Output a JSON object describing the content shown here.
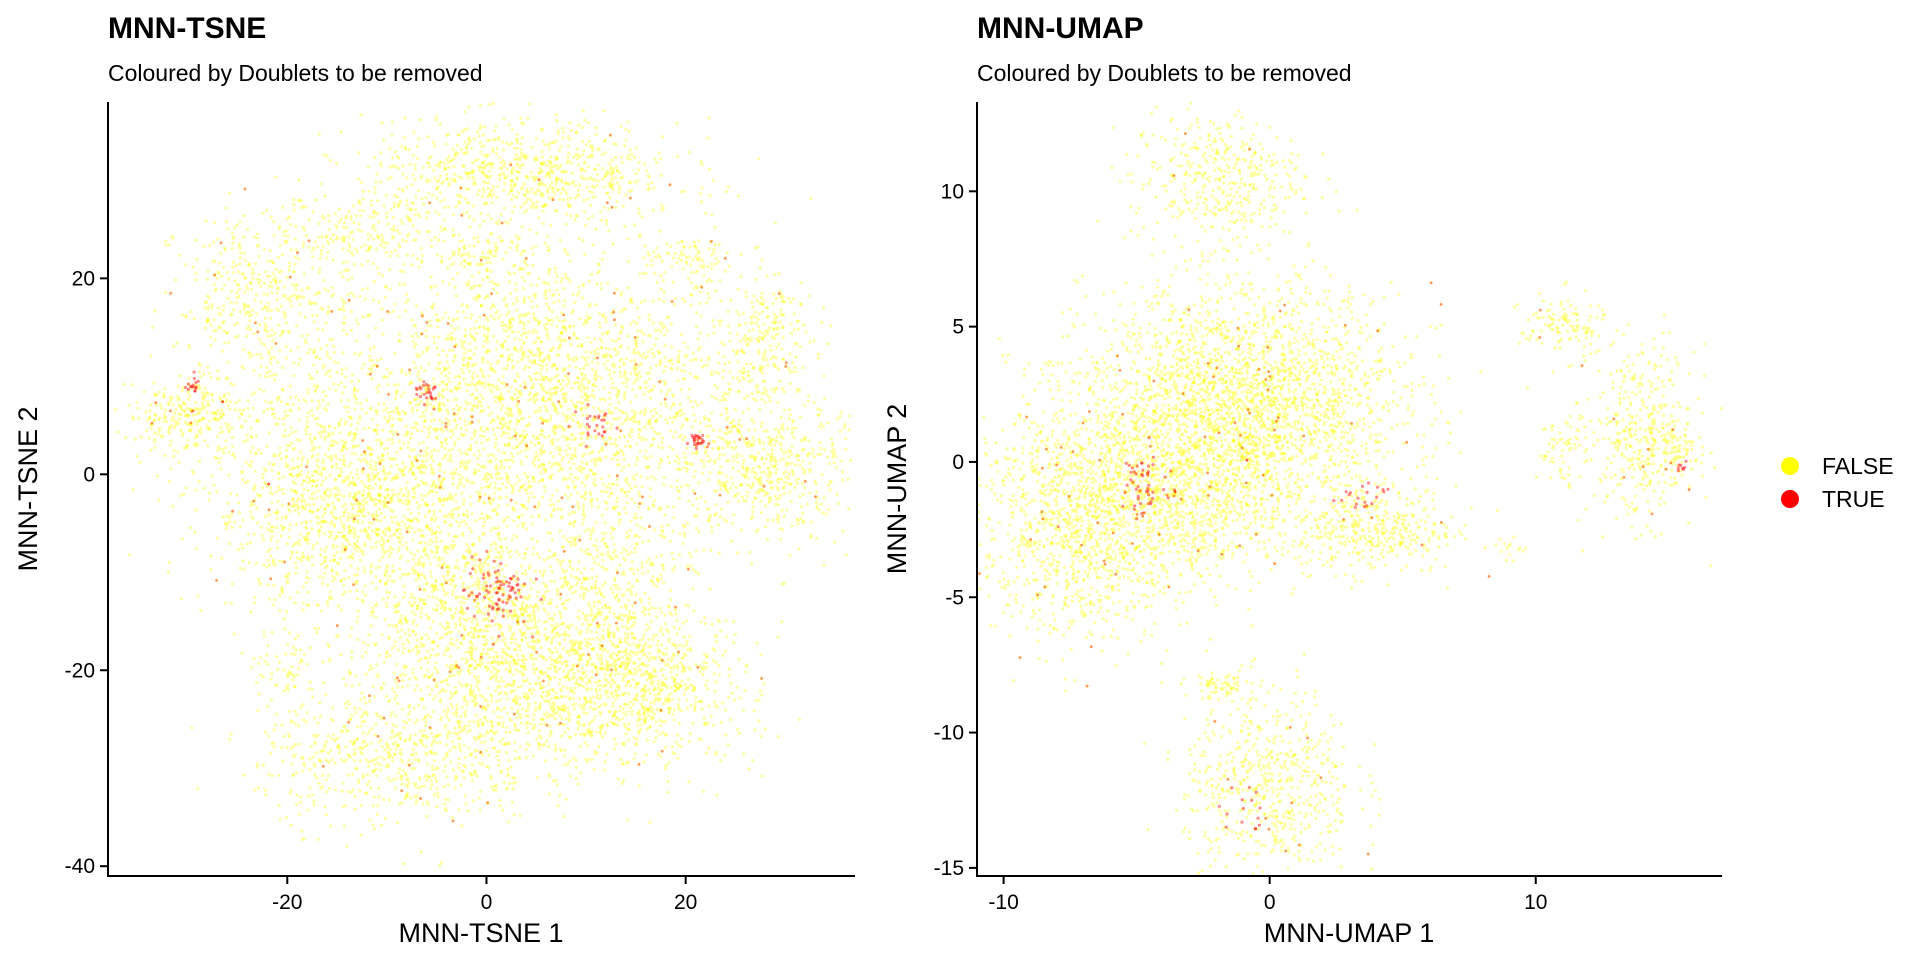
{
  "chart_data": [
    {
      "type": "scatter",
      "title": "MNN-TSNE",
      "subtitle": "Coloured by Doublets to be removed",
      "xlabel": "MNN-TSNE 1",
      "ylabel": "MNN-TSNE 2",
      "xlim": [
        -38,
        37
      ],
      "ylim": [
        -41,
        38
      ],
      "x_ticks": [
        -20,
        0,
        20
      ],
      "y_ticks": [
        -40,
        -20,
        0,
        20
      ],
      "grid": false,
      "clusters": [
        {
          "x": 5,
          "y": 8,
          "sx": 11,
          "sy": 7.5,
          "n": 2600
        },
        {
          "x": 3.5,
          "y": 30.5,
          "sx": 8,
          "sy": 2.8,
          "n": 800
        },
        {
          "x": -22,
          "y": 18,
          "sx": 4.5,
          "sy": 4.5,
          "n": 450
        },
        {
          "x": -30,
          "y": 6,
          "sx": 3,
          "sy": 2,
          "n": 260
        },
        {
          "x": -14,
          "y": -3,
          "sx": 7,
          "sy": 5.5,
          "n": 1300
        },
        {
          "x": 28,
          "y": 0.5,
          "sx": 4,
          "sy": 3.5,
          "n": 450
        },
        {
          "x": 28,
          "y": 14,
          "sx": 2.4,
          "sy": 3.3,
          "n": 200
        },
        {
          "x": 20,
          "y": 22,
          "sx": 2.2,
          "sy": 1,
          "n": 70
        },
        {
          "x": -12,
          "y": 25,
          "sx": 3.5,
          "sy": 2,
          "n": 150
        },
        {
          "x": 5,
          "y": -20,
          "sx": 8,
          "sy": 5,
          "n": 1300
        },
        {
          "x": -9,
          "y": -29,
          "sx": 7,
          "sy": 3.5,
          "n": 600
        },
        {
          "x": -2,
          "y": -12,
          "sx": 5,
          "sy": 6,
          "n": 700
        },
        {
          "x": 13,
          "y": -10,
          "sx": 4,
          "sy": 6,
          "n": 400
        },
        {
          "x": 16,
          "y": -22,
          "sx": 5.5,
          "sy": 4,
          "n": 500
        },
        {
          "x": -20,
          "y": -20,
          "sx": 1.5,
          "sy": 2,
          "n": 60
        },
        {
          "x": 0,
          "y": 22.5,
          "sx": 3,
          "sy": 1,
          "n": 80
        }
      ],
      "doublet_hotspots": [
        {
          "x": 1,
          "y": -12,
          "sx": 1.6,
          "sy": 1.8,
          "n": 80
        },
        {
          "x": 21,
          "y": 3.5,
          "sx": 0.4,
          "sy": 0.4,
          "n": 25
        },
        {
          "x": -6,
          "y": 8.5,
          "sx": 0.7,
          "sy": 0.6,
          "n": 25
        },
        {
          "x": 11,
          "y": 5,
          "sx": 1.2,
          "sy": 1,
          "n": 25
        },
        {
          "x": -29.5,
          "y": 9,
          "sx": 0.4,
          "sy": 0.4,
          "n": 15
        }
      ]
    },
    {
      "type": "scatter",
      "title": "MNN-UMAP",
      "subtitle": "Coloured by Doublets to be removed",
      "xlabel": "MNN-UMAP 1",
      "ylabel": "MNN-UMAP 2",
      "xlim": [
        -11,
        17
      ],
      "ylim": [
        -15.3,
        13.3
      ],
      "x_ticks": [
        -10,
        0,
        10
      ],
      "y_ticks": [
        -15,
        -10,
        -5,
        0,
        5,
        10
      ],
      "grid": false,
      "clusters": [
        {
          "x": -1,
          "y": 2,
          "sx": 3,
          "sy": 2.2,
          "n": 2600
        },
        {
          "x": -7,
          "y": -2,
          "sx": 2,
          "sy": 2.2,
          "n": 1300
        },
        {
          "x": -3,
          "y": -1.5,
          "sx": 1.8,
          "sy": 1.5,
          "n": 600
        },
        {
          "x": 4,
          "y": -2.5,
          "sx": 1.5,
          "sy": 0.8,
          "n": 350
        },
        {
          "x": -2,
          "y": 10.5,
          "sx": 1.6,
          "sy": 1.2,
          "n": 400
        },
        {
          "x": 0,
          "y": -12,
          "sx": 1.6,
          "sy": 1.8,
          "n": 600
        },
        {
          "x": -1.8,
          "y": -8.3,
          "sx": 0.5,
          "sy": 0.3,
          "n": 60
        },
        {
          "x": 14,
          "y": 1,
          "sx": 1,
          "sy": 1.6,
          "n": 400
        },
        {
          "x": 11,
          "y": 5,
          "sx": 0.8,
          "sy": 0.6,
          "n": 120
        },
        {
          "x": 11,
          "y": 0.5,
          "sx": 0.5,
          "sy": 0.6,
          "n": 60
        },
        {
          "x": 15.5,
          "y": 0.3,
          "sx": 0.3,
          "sy": 0.5,
          "n": 50
        },
        {
          "x": 9,
          "y": -3.2,
          "sx": 0.3,
          "sy": 0.2,
          "n": 15
        }
      ],
      "doublet_hotspots": [
        {
          "x": -4.7,
          "y": -0.7,
          "sx": 0.4,
          "sy": 0.6,
          "n": 50
        },
        {
          "x": 3.5,
          "y": -1.3,
          "sx": 0.5,
          "sy": 0.4,
          "n": 20
        },
        {
          "x": -1,
          "y": -13,
          "sx": 0.5,
          "sy": 0.5,
          "n": 15
        },
        {
          "x": 15.5,
          "y": -0.2,
          "sx": 0.2,
          "sy": 0.2,
          "n": 8
        }
      ]
    }
  ],
  "legend": {
    "items": [
      {
        "label": "FALSE",
        "color": "#ffff00"
      },
      {
        "label": "TRUE",
        "color": "#ff0000"
      }
    ],
    "placement": "right"
  },
  "colors": {
    "false": "#ffff00",
    "true": "#ff0000",
    "axis": "#000000",
    "background": "#ffffff"
  }
}
